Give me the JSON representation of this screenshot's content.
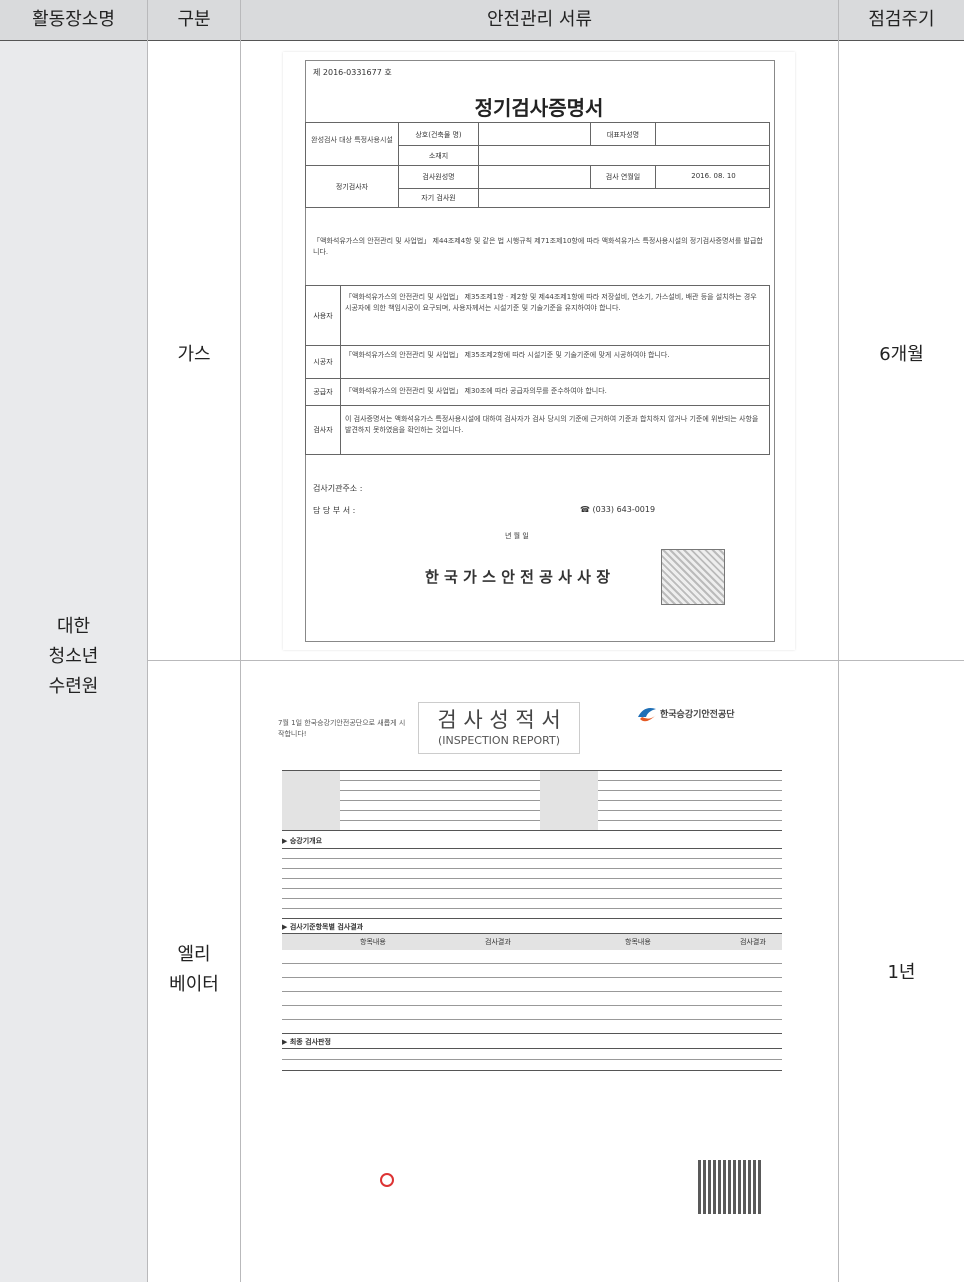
{
  "table": {
    "header": [
      "활동장소명",
      "구분",
      "안전관리 서류",
      "점검주기"
    ],
    "place": [
      "대한",
      "청소년",
      "수련원"
    ],
    "rows": [
      {
        "category": [
          "가스"
        ],
        "cycle": "6개월"
      },
      {
        "category": [
          "엘리",
          "베이터"
        ],
        "cycle": "1년"
      }
    ]
  },
  "gas_certificate": {
    "number": "제 2016-0331677 호",
    "title": "정기검사증명서",
    "fields": [
      "완성검사 대상 특정사용시설",
      "상호(건축물 명)",
      "대표자성명",
      "소재지",
      "정기검사자",
      "검사원성명",
      "검사 연월일",
      "2016. 08. 10",
      "자기 검사원"
    ],
    "statement": "「액화석유가스의 안전관리 및 사업법」 제44조제4항 및 같은 법 시행규칙 제71조제10항에 따라 액화석유가스 특정사용시설의 정기검사증명서를 발급합니다.",
    "duties": [
      {
        "role": "사용자",
        "text": "「액화석유가스의 안전관리 및 사업법」 제35조제1항 · 제2항 및 제44조제1항에 따라 저장설비, 연소기, 가스설비, 배관 등을 설치하는 경우 시공자에 의한 책임시공이 요구되며, 사용자께서는 시설기준 및 기술기준을 유지하여야 합니다."
      },
      {
        "role": "시공자",
        "text": "「액화석유가스의 안전관리 및 사업법」 제35조제2항에 따라 시설기준 및 기술기준에 맞게 시공하여야 합니다."
      },
      {
        "role": "공급자",
        "text": "「액화석유가스의 안전관리 및 사업법」 제30조에 따라 공급자의무를 준수하여야 합니다."
      },
      {
        "role": "검사자",
        "text": "이 검사증명서는 액화석유가스 특정사용시설에 대하여 검사자가 검사 당시의 기준에 근거하여 기준과 합치하지 않거나 기준에 위반되는 사항을 발견하지 못하였음을 확인하는 것입니다."
      }
    ],
    "address_label": "검사기관주소 :",
    "dept_label": "담 당 부 서 :",
    "phone": "☎ (033) 643-0019",
    "date": "년     월     일",
    "issuer": "한 국 가 스 안 전 공 사 사 장"
  },
  "elevator_report": {
    "notice": "7월 1일 한국승강기안전공단으로 새롭게 시작합니다!",
    "title": "검 사 성 적 서",
    "subtitle": "(INSPECTION REPORT)",
    "agency": "한국승강기안전공단",
    "sections": [
      "▶ 승강기개요",
      "▶ 검사기준항목별 검사결과",
      "▶ 최종 검사판정"
    ],
    "columns": [
      "항목내용",
      "검사결과"
    ]
  }
}
